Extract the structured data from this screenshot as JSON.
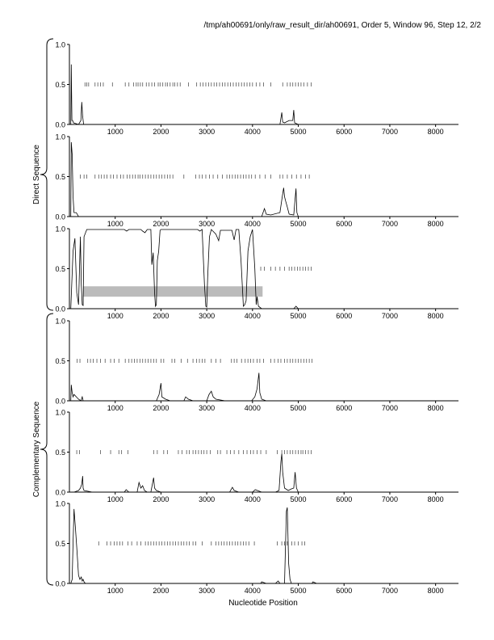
{
  "header": {
    "path_label": "/tmp/ah00691/only/raw_result_dir/ah00691, Order 5, Window 96, Step 12, 2/2"
  },
  "group_labels": {
    "direct": "Direct Sequence",
    "complementary": "Complementary Sequence"
  },
  "colors": {
    "line": "#000000",
    "ticks": "#555555",
    "band": "#bbbbbb",
    "axis": "#000000"
  },
  "chart_data": {
    "type": "line",
    "xlabel": "Nucleotide Position",
    "xlim": [
      0,
      8500
    ],
    "ylim": [
      0,
      1
    ],
    "x_ticks": [
      1000,
      2000,
      3000,
      4000,
      5000,
      6000,
      7000,
      8000
    ],
    "x_tick_labels": [
      "1000",
      "2000",
      "3000",
      "4000",
      "5000",
      "6000",
      "7000",
      "8000"
    ],
    "y_ticks": [
      0,
      0.5,
      1
    ],
    "y_tick_labels": [
      "0.0",
      "0.5",
      "1.0"
    ],
    "panels": [
      {
        "group": "direct",
        "points": [
          [
            30,
            0
          ],
          [
            40,
            0.75
          ],
          [
            55,
            0.05
          ],
          [
            70,
            0.05
          ],
          [
            90,
            0.02
          ],
          [
            200,
            0
          ],
          [
            250,
            0.05
          ],
          [
            270,
            0.28
          ],
          [
            290,
            0.1
          ],
          [
            310,
            0
          ],
          [
            1000,
            0
          ],
          [
            2000,
            0
          ],
          [
            3000,
            0
          ],
          [
            4000,
            0
          ],
          [
            4600,
            0
          ],
          [
            4640,
            0.15
          ],
          [
            4660,
            0.03
          ],
          [
            4700,
            0.02
          ],
          [
            4800,
            0.05
          ],
          [
            4880,
            0.05
          ],
          [
            4900,
            0.18
          ],
          [
            4920,
            0.02
          ],
          [
            5000,
            0
          ],
          [
            8500,
            0
          ]
        ],
        "tick_y": 0.5,
        "ticks": [
          340,
          380,
          420,
          560,
          620,
          680,
          740,
          940,
          1220,
          1300,
          1400,
          1460,
          1500,
          1550,
          1600,
          1680,
          1740,
          1800,
          1860,
          1940,
          1980,
          2040,
          2100,
          2140,
          2200,
          2260,
          2300,
          2360,
          2420,
          2600,
          2780,
          2860,
          2920,
          2980,
          3040,
          3100,
          3160,
          3220,
          3280,
          3340,
          3400,
          3460,
          3520,
          3580,
          3640,
          3700,
          3760,
          3820,
          3880,
          3940,
          4000,
          4080,
          4160,
          4240,
          4400,
          4660,
          4760,
          4820,
          4880,
          4940,
          5000,
          5060,
          5120,
          5200,
          5280
        ]
      },
      {
        "group": "direct",
        "points": [
          [
            30,
            0
          ],
          [
            40,
            0.93
          ],
          [
            60,
            0.78
          ],
          [
            80,
            0.25
          ],
          [
            100,
            0.05
          ],
          [
            150,
            0.05
          ],
          [
            200,
            0
          ],
          [
            1000,
            0
          ],
          [
            2000,
            0
          ],
          [
            3000,
            0
          ],
          [
            4000,
            0
          ],
          [
            4200,
            0
          ],
          [
            4260,
            0.1
          ],
          [
            4300,
            0.03
          ],
          [
            4400,
            0.02
          ],
          [
            4600,
            0.05
          ],
          [
            4650,
            0.25
          ],
          [
            4680,
            0.36
          ],
          [
            4700,
            0.25
          ],
          [
            4720,
            0.2
          ],
          [
            4760,
            0.12
          ],
          [
            4800,
            0.03
          ],
          [
            4900,
            0.02
          ],
          [
            4950,
            0.35
          ],
          [
            4970,
            0.05
          ],
          [
            5000,
            0
          ],
          [
            8500,
            0
          ]
        ],
        "tick_y": 0.5,
        "ticks": [
          240,
          320,
          380,
          560,
          640,
          700,
          760,
          820,
          900,
          960,
          1040,
          1120,
          1180,
          1260,
          1320,
          1380,
          1440,
          1500,
          1540,
          1600,
          1660,
          1720,
          1780,
          1840,
          1900,
          1960,
          2020,
          2080,
          2140,
          2200,
          2260,
          2500,
          2760,
          2840,
          2900,
          2980,
          3060,
          3140,
          3240,
          3340,
          3440,
          3500,
          3560,
          3620,
          3680,
          3740,
          3800,
          3860,
          3920,
          3980,
          4060,
          4160,
          4280,
          4400,
          4600,
          4660,
          4760,
          4860,
          4960,
          5060,
          5160,
          5240
        ]
      },
      {
        "group": "direct",
        "points": [
          [
            30,
            0
          ],
          [
            80,
            0.72
          ],
          [
            120,
            0.88
          ],
          [
            160,
            0.2
          ],
          [
            200,
            0.05
          ],
          [
            240,
            0.9
          ],
          [
            260,
            0.3
          ],
          [
            280,
            0.05
          ],
          [
            300,
            0.04
          ],
          [
            320,
            0.9
          ],
          [
            380,
            0.99
          ],
          [
            900,
            0.99
          ],
          [
            1200,
            0.99
          ],
          [
            1250,
            0.97
          ],
          [
            1300,
            0.99
          ],
          [
            1560,
            0.99
          ],
          [
            1600,
            0.97
          ],
          [
            1650,
            0.95
          ],
          [
            1700,
            0.99
          ],
          [
            1780,
            0.99
          ],
          [
            1800,
            0.55
          ],
          [
            1830,
            0.7
          ],
          [
            1860,
            0.2
          ],
          [
            1880,
            0.03
          ],
          [
            1900,
            0.05
          ],
          [
            1920,
            0.6
          ],
          [
            1950,
            0.72
          ],
          [
            1980,
            0.98
          ],
          [
            2000,
            0.99
          ],
          [
            2800,
            0.99
          ],
          [
            2850,
            0.97
          ],
          [
            2900,
            0.99
          ],
          [
            2950,
            0.3
          ],
          [
            2980,
            0.03
          ],
          [
            3000,
            0.02
          ],
          [
            3020,
            0.4
          ],
          [
            3060,
            0.9
          ],
          [
            3100,
            0.99
          ],
          [
            3200,
            0.93
          ],
          [
            3260,
            0.85
          ],
          [
            3300,
            0.98
          ],
          [
            3550,
            0.98
          ],
          [
            3600,
            0.86
          ],
          [
            3640,
            0.99
          ],
          [
            3700,
            0.99
          ],
          [
            3750,
            0.6
          ],
          [
            3800,
            0.03
          ],
          [
            3830,
            0.05
          ],
          [
            3860,
            0.1
          ],
          [
            3900,
            0.72
          ],
          [
            3950,
            0.9
          ],
          [
            4000,
            0.99
          ],
          [
            4050,
            0.5
          ],
          [
            4080,
            0.05
          ],
          [
            4100,
            0.15
          ],
          [
            4130,
            0.03
          ],
          [
            4200,
            0
          ],
          [
            4900,
            0
          ],
          [
            4950,
            0.03
          ],
          [
            5000,
            0
          ],
          [
            8500,
            0
          ]
        ],
        "tick_y": 0.5,
        "ticks": [
          4180,
          4260,
          4400,
          4500,
          4600,
          4700,
          4800,
          4860,
          4920,
          4980,
          5040,
          5100,
          5160,
          5220,
          5280
        ],
        "bands": [
          [
            300,
            4220,
            0.15,
            0.28
          ]
        ]
      },
      {
        "group": "complementary",
        "points": [
          [
            30,
            0
          ],
          [
            40,
            0.2
          ],
          [
            60,
            0.1
          ],
          [
            80,
            0.05
          ],
          [
            100,
            0.08
          ],
          [
            200,
            0.02
          ],
          [
            250,
            0
          ],
          [
            280,
            0.05
          ],
          [
            300,
            0
          ],
          [
            1000,
            0
          ],
          [
            1900,
            0
          ],
          [
            1960,
            0.08
          ],
          [
            2000,
            0.22
          ],
          [
            2020,
            0.05
          ],
          [
            2100,
            0.02
          ],
          [
            2200,
            0
          ],
          [
            2500,
            0
          ],
          [
            2540,
            0.05
          ],
          [
            2600,
            0.02
          ],
          [
            2700,
            0
          ],
          [
            3000,
            0
          ],
          [
            3050,
            0.08
          ],
          [
            3100,
            0.12
          ],
          [
            3140,
            0.05
          ],
          [
            3200,
            0.02
          ],
          [
            3400,
            0
          ],
          [
            3980,
            0
          ],
          [
            4050,
            0.05
          ],
          [
            4100,
            0.15
          ],
          [
            4140,
            0.35
          ],
          [
            4160,
            0.1
          ],
          [
            4200,
            0.02
          ],
          [
            4300,
            0
          ],
          [
            8500,
            0
          ]
        ],
        "tick_y": 0.5,
        "ticks": [
          170,
          230,
          400,
          460,
          520,
          600,
          680,
          780,
          900,
          980,
          1080,
          1220,
          1300,
          1360,
          1420,
          1480,
          1540,
          1600,
          1660,
          1720,
          1780,
          1840,
          1900,
          2000,
          2060,
          2240,
          2300,
          2440,
          2580,
          2700,
          2780,
          2840,
          2900,
          2960,
          3100,
          3200,
          3300,
          3540,
          3600,
          3660,
          3760,
          3840,
          3900,
          3960,
          4020,
          4100,
          4160,
          4240,
          4400,
          4480,
          4560,
          4620,
          4700,
          4760,
          4820,
          4880,
          4940,
          5000,
          5060,
          5120,
          5180,
          5240,
          5300
        ]
      },
      {
        "group": "complementary",
        "points": [
          [
            30,
            0
          ],
          [
            100,
            0
          ],
          [
            200,
            0.02
          ],
          [
            240,
            0.05
          ],
          [
            270,
            0.1
          ],
          [
            290,
            0.2
          ],
          [
            300,
            0.05
          ],
          [
            320,
            0.02
          ],
          [
            500,
            0
          ],
          [
            1000,
            0
          ],
          [
            1200,
            0
          ],
          [
            1240,
            0.03
          ],
          [
            1300,
            0
          ],
          [
            1480,
            0
          ],
          [
            1520,
            0.12
          ],
          [
            1560,
            0.05
          ],
          [
            1600,
            0.08
          ],
          [
            1640,
            0.02
          ],
          [
            1700,
            0
          ],
          [
            1780,
            0
          ],
          [
            1840,
            0.18
          ],
          [
            1860,
            0.05
          ],
          [
            1900,
            0.02
          ],
          [
            2000,
            0
          ],
          [
            3500,
            0
          ],
          [
            3560,
            0.06
          ],
          [
            3600,
            0.02
          ],
          [
            3700,
            0
          ],
          [
            4000,
            0
          ],
          [
            4060,
            0.03
          ],
          [
            4200,
            0
          ],
          [
            4500,
            0
          ],
          [
            4580,
            0.02
          ],
          [
            4620,
            0.38
          ],
          [
            4640,
            0.48
          ],
          [
            4660,
            0.25
          ],
          [
            4700,
            0.05
          ],
          [
            4780,
            0.02
          ],
          [
            4850,
            0.04
          ],
          [
            4900,
            0.05
          ],
          [
            4930,
            0.25
          ],
          [
            4960,
            0.05
          ],
          [
            5000,
            0
          ],
          [
            8500,
            0
          ]
        ],
        "tick_y": 0.5,
        "ticks": [
          160,
          220,
          680,
          900,
          1080,
          1140,
          1280,
          1840,
          1920,
          2060,
          2140,
          2380,
          2460,
          2560,
          2620,
          2700,
          2760,
          2820,
          2880,
          2940,
          3000,
          3080,
          3240,
          3300,
          3440,
          3520,
          3600,
          3700,
          3800,
          3880,
          3960,
          4020,
          4100,
          4180,
          4300,
          4540,
          4640,
          4700,
          4760,
          4820,
          4880,
          4940,
          5000,
          5060,
          5100,
          5160,
          5220,
          5280
        ]
      },
      {
        "group": "complementary",
        "points": [
          [
            30,
            0
          ],
          [
            60,
            0.05
          ],
          [
            80,
            0.5
          ],
          [
            100,
            0.93
          ],
          [
            130,
            0.7
          ],
          [
            160,
            0.45
          ],
          [
            200,
            0.1
          ],
          [
            230,
            0.05
          ],
          [
            260,
            0.08
          ],
          [
            280,
            0.03
          ],
          [
            300,
            0.05
          ],
          [
            320,
            0.02
          ],
          [
            350,
            0
          ],
          [
            4000,
            0
          ],
          [
            4180,
            0
          ],
          [
            4200,
            0.02
          ],
          [
            4300,
            0
          ],
          [
            4500,
            0
          ],
          [
            4560,
            0.03
          ],
          [
            4600,
            0
          ],
          [
            4700,
            0
          ],
          [
            4740,
            0.9
          ],
          [
            4760,
            0.95
          ],
          [
            4790,
            0.25
          ],
          [
            4820,
            0.05
          ],
          [
            4850,
            0
          ],
          [
            5300,
            0
          ],
          [
            5320,
            0.02
          ],
          [
            5400,
            0
          ],
          [
            8500,
            0
          ]
        ],
        "tick_y": 0.5,
        "ticks": [
          640,
          820,
          900,
          980,
          1040,
          1100,
          1160,
          1280,
          1360,
          1480,
          1560,
          1660,
          1720,
          1780,
          1840,
          1900,
          1960,
          2020,
          2080,
          2140,
          2200,
          2260,
          2320,
          2380,
          2440,
          2500,
          2560,
          2620,
          2700,
          2760,
          2900,
          3100,
          3200,
          3260,
          3320,
          3380,
          3440,
          3500,
          3560,
          3620,
          3680,
          3740,
          3800,
          3860,
          3920,
          4040,
          4540,
          4640,
          4700,
          4760,
          4860,
          4920,
          5000,
          5080,
          5140
        ]
      }
    ]
  }
}
